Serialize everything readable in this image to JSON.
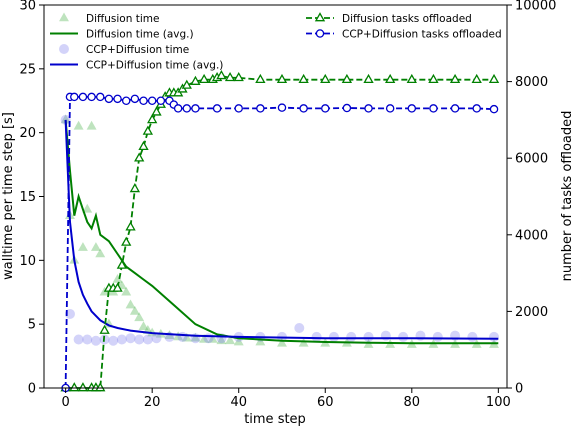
{
  "chart_data": {
    "type": "line",
    "xlabel": "time step",
    "ylabel_left": "walltime per time step [s]",
    "ylabel_right": "number of tasks offloaded",
    "xlim": [
      -5,
      102
    ],
    "ylim_left": [
      0,
      30
    ],
    "ylim_right": [
      0,
      10000
    ],
    "xticks": [
      0,
      20,
      40,
      60,
      80,
      100
    ],
    "yticks_left": [
      0,
      5,
      10,
      15,
      20,
      25,
      30
    ],
    "yticks_right": [
      0,
      2000,
      4000,
      6000,
      8000,
      10000
    ],
    "grid": false,
    "legend_left": "top-left",
    "legend_right": "top-right",
    "legend_left_entries": [
      "Diffusion time",
      "Diffusion time (avg.)",
      "CCP+Diffusion time",
      "CCP+Diffusion time (avg.)"
    ],
    "legend_right_entries": [
      "Diffusion tasks offloaded",
      "CCP+Diffusion tasks offloaded"
    ],
    "colors": {
      "diffusion": "#008000",
      "diffusion_points": "#5cb85c",
      "ccp": "#0000cc",
      "ccp_points": "#8080ee"
    },
    "series": [
      {
        "name": "Diffusion time",
        "axis": "left",
        "style": "scatter-triangle",
        "x": [
          0,
          1,
          2,
          3,
          4,
          5,
          6,
          7,
          8,
          9,
          10,
          11,
          12,
          13,
          14,
          15,
          16,
          17,
          18,
          19,
          20,
          22,
          24,
          26,
          28,
          30,
          32,
          34,
          36,
          38,
          40,
          45,
          50,
          55,
          60,
          65,
          70,
          75,
          80,
          85,
          90,
          95,
          99
        ],
        "y": [
          21.0,
          13.5,
          10.0,
          20.5,
          11.0,
          14.0,
          20.5,
          11.0,
          10.5,
          7.5,
          5.0,
          7.5,
          8.5,
          8.0,
          7.5,
          6.5,
          6.0,
          5.5,
          4.8,
          4.5,
          4.3,
          4.2,
          4.1,
          4.0,
          3.9,
          3.9,
          3.8,
          3.8,
          3.7,
          3.7,
          3.6,
          3.6,
          3.5,
          3.5,
          3.5,
          3.5,
          3.4,
          3.4,
          3.4,
          3.4,
          3.4,
          3.4,
          3.4
        ]
      },
      {
        "name": "Diffusion time (avg.)",
        "axis": "left",
        "style": "line",
        "x": [
          0,
          1,
          2,
          3,
          4,
          5,
          6,
          7,
          8,
          10,
          12,
          14,
          16,
          18,
          20,
          25,
          30,
          35,
          40,
          50,
          60,
          70,
          80,
          90,
          100
        ],
        "y": [
          21.0,
          17.0,
          13.5,
          15.0,
          14.0,
          13.0,
          12.5,
          13.5,
          12.0,
          11.5,
          10.5,
          9.5,
          9.0,
          8.5,
          8.0,
          6.5,
          5.0,
          4.2,
          3.9,
          3.7,
          3.6,
          3.55,
          3.5,
          3.5,
          3.5
        ]
      },
      {
        "name": "CCP+Diffusion time",
        "axis": "left",
        "style": "scatter-circle",
        "x": [
          0,
          1,
          3,
          5,
          7,
          9,
          11,
          13,
          15,
          17,
          19,
          21,
          24,
          27,
          30,
          33,
          36,
          40,
          45,
          50,
          54,
          58,
          62,
          66,
          70,
          74,
          78,
          82,
          86,
          90,
          94,
          99
        ],
        "y": [
          21.0,
          5.8,
          3.8,
          3.8,
          3.7,
          3.8,
          3.7,
          3.8,
          3.9,
          3.8,
          3.8,
          3.9,
          4.0,
          4.0,
          3.9,
          3.9,
          3.9,
          4.0,
          4.0,
          4.0,
          4.7,
          4.0,
          4.0,
          4.0,
          4.0,
          4.1,
          4.0,
          4.1,
          4.0,
          4.1,
          4.0,
          4.0
        ]
      },
      {
        "name": "CCP+Diffusion time (avg.)",
        "axis": "left",
        "style": "line",
        "x": [
          0,
          1,
          2,
          3,
          4,
          5,
          6,
          8,
          10,
          12,
          15,
          20,
          30,
          40,
          60,
          80,
          100
        ],
        "y": [
          21.0,
          13.0,
          10.0,
          8.3,
          7.3,
          6.6,
          6.0,
          5.3,
          4.9,
          4.7,
          4.5,
          4.3,
          4.1,
          4.0,
          3.9,
          3.9,
          3.85
        ]
      },
      {
        "name": "Diffusion tasks offloaded",
        "axis": "right",
        "style": "dashed-triangle",
        "x": [
          0,
          2,
          4,
          6,
          7,
          8,
          9,
          10,
          11,
          12,
          13,
          14,
          15,
          16,
          17,
          18,
          19,
          20,
          21,
          22,
          23,
          24,
          25,
          26,
          27,
          28,
          30,
          32,
          34,
          35,
          36,
          38,
          40,
          45,
          50,
          55,
          60,
          65,
          70,
          75,
          80,
          85,
          90,
          95,
          99
        ],
        "y": [
          0,
          0,
          0,
          0,
          0,
          0,
          1500,
          2600,
          2600,
          2600,
          3200,
          3800,
          4200,
          5200,
          6000,
          6300,
          6700,
          7000,
          7200,
          7400,
          7600,
          7700,
          7700,
          7700,
          7800,
          7900,
          8000,
          8050,
          8050,
          8100,
          8150,
          8100,
          8100,
          8050,
          8050,
          8050,
          8050,
          8050,
          8050,
          8050,
          8050,
          8050,
          8050,
          8050,
          8050
        ]
      },
      {
        "name": "CCP+Diffusion tasks offloaded",
        "axis": "right",
        "style": "dashed-circle",
        "x": [
          0,
          1,
          2,
          4,
          6,
          8,
          10,
          12,
          14,
          16,
          18,
          20,
          22,
          24,
          25,
          26,
          28,
          30,
          35,
          40,
          45,
          50,
          55,
          60,
          65,
          70,
          75,
          80,
          85,
          90,
          95,
          99
        ],
        "y": [
          0,
          7600,
          7600,
          7600,
          7600,
          7600,
          7550,
          7550,
          7500,
          7550,
          7500,
          7500,
          7500,
          7500,
          7400,
          7300,
          7300,
          7300,
          7300,
          7300,
          7300,
          7320,
          7300,
          7300,
          7310,
          7300,
          7300,
          7300,
          7300,
          7300,
          7300,
          7280
        ]
      }
    ]
  }
}
